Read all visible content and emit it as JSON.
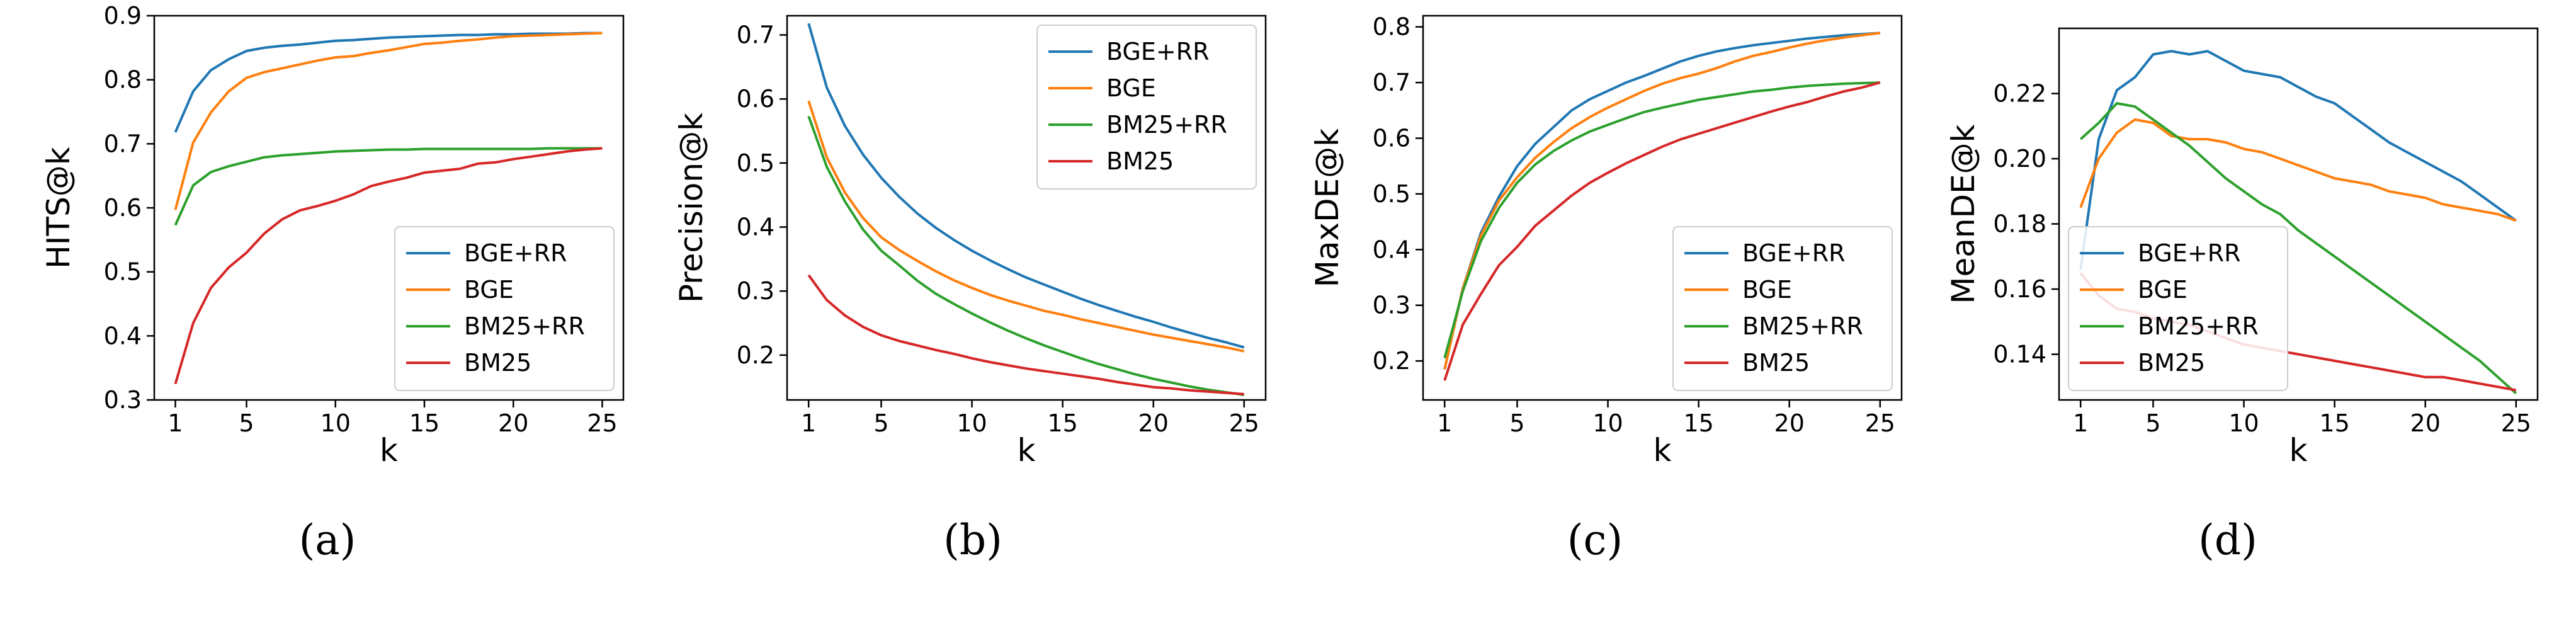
{
  "colors": {
    "BGE+RR": "#1f77b4",
    "BGE": "#ff7f0e",
    "BM25+RR": "#2ca02c",
    "BM25": "#d62728"
  },
  "chart_data": [
    {
      "type": "line",
      "caption": "(a)",
      "xlabel": "k",
      "ylabel": "HITS@k",
      "xlim": [
        1,
        25
      ],
      "ylim": [
        0.3,
        0.9
      ],
      "xticks": [
        1,
        5,
        10,
        15,
        20,
        25
      ],
      "yticks": [
        0.3,
        0.4,
        0.5,
        0.6,
        0.7,
        0.8,
        0.9
      ],
      "ytick_labels": [
        "0.3",
        "0.4",
        "0.5",
        "0.6",
        "0.7",
        "0.8",
        "0.9"
      ],
      "legend": "lower-right",
      "x": [
        1,
        2,
        3,
        4,
        5,
        6,
        7,
        8,
        9,
        10,
        11,
        12,
        13,
        14,
        15,
        16,
        17,
        18,
        19,
        20,
        21,
        22,
        23,
        24,
        25
      ],
      "series": [
        {
          "name": "BGE+RR",
          "values": [
            0.718,
            0.782,
            0.815,
            0.832,
            0.845,
            0.85,
            0.853,
            0.855,
            0.858,
            0.861,
            0.862,
            0.864,
            0.866,
            0.867,
            0.868,
            0.869,
            0.87,
            0.87,
            0.871,
            0.871,
            0.872,
            0.872,
            0.872,
            0.873,
            0.873
          ]
        },
        {
          "name": "BGE",
          "values": [
            0.597,
            0.702,
            0.749,
            0.782,
            0.803,
            0.812,
            0.818,
            0.824,
            0.83,
            0.835,
            0.837,
            0.842,
            0.846,
            0.851,
            0.856,
            0.858,
            0.861,
            0.863,
            0.866,
            0.868,
            0.869,
            0.87,
            0.871,
            0.872,
            0.873
          ]
        },
        {
          "name": "BM25+RR",
          "values": [
            0.573,
            0.635,
            0.656,
            0.665,
            0.672,
            0.679,
            0.682,
            0.684,
            0.686,
            0.688,
            0.689,
            0.69,
            0.691,
            0.691,
            0.692,
            0.692,
            0.692,
            0.692,
            0.692,
            0.692,
            0.692,
            0.693,
            0.693,
            0.693,
            0.693
          ]
        },
        {
          "name": "BM25",
          "values": [
            0.325,
            0.42,
            0.475,
            0.507,
            0.53,
            0.56,
            0.582,
            0.596,
            0.603,
            0.611,
            0.621,
            0.634,
            0.641,
            0.647,
            0.655,
            0.658,
            0.661,
            0.669,
            0.671,
            0.676,
            0.68,
            0.684,
            0.688,
            0.691,
            0.693
          ]
        }
      ]
    },
    {
      "type": "line",
      "caption": "(b)",
      "xlabel": "k",
      "ylabel": "Precision@k",
      "xlim": [
        1,
        25
      ],
      "ylim": [
        0.13,
        0.73
      ],
      "xticks": [
        1,
        5,
        10,
        15,
        20,
        25
      ],
      "yticks": [
        0.2,
        0.3,
        0.4,
        0.5,
        0.6,
        0.7
      ],
      "ytick_labels": [
        "0.2",
        "0.3",
        "0.4",
        "0.5",
        "0.6",
        "0.7"
      ],
      "legend": "top-right",
      "x": [
        1,
        2,
        3,
        4,
        5,
        6,
        7,
        8,
        9,
        10,
        11,
        12,
        13,
        14,
        15,
        16,
        17,
        18,
        19,
        20,
        21,
        22,
        23,
        24,
        25
      ],
      "series": [
        {
          "name": "BGE+RR",
          "values": [
            0.718,
            0.618,
            0.558,
            0.513,
            0.477,
            0.447,
            0.421,
            0.399,
            0.38,
            0.363,
            0.348,
            0.334,
            0.321,
            0.31,
            0.299,
            0.288,
            0.278,
            0.269,
            0.26,
            0.252,
            0.243,
            0.235,
            0.227,
            0.22,
            0.212
          ]
        },
        {
          "name": "BGE",
          "values": [
            0.597,
            0.509,
            0.454,
            0.414,
            0.384,
            0.364,
            0.347,
            0.331,
            0.317,
            0.305,
            0.294,
            0.285,
            0.277,
            0.269,
            0.263,
            0.256,
            0.25,
            0.244,
            0.238,
            0.232,
            0.227,
            0.222,
            0.217,
            0.212,
            0.206
          ]
        },
        {
          "name": "BM25+RR",
          "values": [
            0.573,
            0.494,
            0.44,
            0.396,
            0.363,
            0.34,
            0.316,
            0.296,
            0.28,
            0.265,
            0.251,
            0.238,
            0.226,
            0.215,
            0.205,
            0.195,
            0.186,
            0.178,
            0.17,
            0.163,
            0.157,
            0.151,
            0.146,
            0.142,
            0.138
          ]
        },
        {
          "name": "BM25",
          "values": [
            0.325,
            0.286,
            0.262,
            0.244,
            0.231,
            0.222,
            0.215,
            0.208,
            0.202,
            0.195,
            0.189,
            0.184,
            0.179,
            0.175,
            0.171,
            0.167,
            0.163,
            0.158,
            0.154,
            0.15,
            0.148,
            0.145,
            0.143,
            0.141,
            0.139
          ]
        }
      ]
    },
    {
      "type": "line",
      "caption": "(c)",
      "xlabel": "k",
      "ylabel": "MaxDE@k",
      "xlim": [
        1,
        25
      ],
      "ylim": [
        0.13,
        0.82
      ],
      "xticks": [
        1,
        5,
        10,
        15,
        20,
        25
      ],
      "yticks": [
        0.2,
        0.3,
        0.4,
        0.5,
        0.6,
        0.7,
        0.8
      ],
      "ytick_labels": [
        "0.2",
        "0.3",
        "0.4",
        "0.5",
        "0.6",
        "0.7",
        "0.8"
      ],
      "legend": "lower-right",
      "x": [
        1,
        2,
        3,
        4,
        5,
        6,
        7,
        8,
        9,
        10,
        11,
        12,
        13,
        14,
        15,
        16,
        17,
        18,
        19,
        20,
        21,
        22,
        23,
        24,
        25
      ],
      "series": [
        {
          "name": "BGE+RR",
          "values": [
            0.185,
            0.33,
            0.43,
            0.495,
            0.55,
            0.59,
            0.62,
            0.65,
            0.67,
            0.685,
            0.7,
            0.712,
            0.725,
            0.738,
            0.748,
            0.756,
            0.762,
            0.767,
            0.771,
            0.775,
            0.779,
            0.782,
            0.785,
            0.787,
            0.789
          ]
        },
        {
          "name": "BGE",
          "values": [
            0.185,
            0.33,
            0.425,
            0.488,
            0.53,
            0.565,
            0.593,
            0.618,
            0.638,
            0.655,
            0.67,
            0.685,
            0.698,
            0.708,
            0.716,
            0.726,
            0.738,
            0.748,
            0.755,
            0.763,
            0.77,
            0.776,
            0.781,
            0.785,
            0.789
          ]
        },
        {
          "name": "BM25+RR",
          "values": [
            0.205,
            0.325,
            0.415,
            0.475,
            0.52,
            0.553,
            0.577,
            0.596,
            0.612,
            0.624,
            0.636,
            0.647,
            0.655,
            0.662,
            0.669,
            0.674,
            0.679,
            0.684,
            0.687,
            0.691,
            0.694,
            0.696,
            0.698,
            0.699,
            0.7
          ]
        },
        {
          "name": "BM25",
          "values": [
            0.165,
            0.265,
            0.32,
            0.372,
            0.405,
            0.443,
            0.47,
            0.497,
            0.52,
            0.538,
            0.555,
            0.57,
            0.585,
            0.598,
            0.608,
            0.618,
            0.628,
            0.638,
            0.648,
            0.657,
            0.665,
            0.675,
            0.684,
            0.691,
            0.7
          ]
        }
      ]
    },
    {
      "type": "line",
      "caption": "(d)",
      "xlabel": "k",
      "ylabel": "MeanDE@k",
      "xlim": [
        1,
        25
      ],
      "ylim": [
        0.126,
        0.24
      ],
      "xticks": [
        1,
        5,
        10,
        15,
        20,
        25
      ],
      "yticks": [
        0.14,
        0.16,
        0.18,
        0.2,
        0.22
      ],
      "ytick_labels": [
        "0.14",
        "0.16",
        "0.18",
        "0.20",
        "0.22"
      ],
      "legend": "lower-left",
      "x": [
        1,
        2,
        3,
        4,
        5,
        6,
        7,
        8,
        9,
        10,
        11,
        12,
        13,
        14,
        15,
        16,
        17,
        18,
        19,
        20,
        21,
        22,
        23,
        24,
        25
      ],
      "series": [
        {
          "name": "BGE+RR",
          "values": [
            0.166,
            0.206,
            0.221,
            0.225,
            0.232,
            0.233,
            0.232,
            0.233,
            0.23,
            0.227,
            0.226,
            0.225,
            0.222,
            0.219,
            0.217,
            0.213,
            0.209,
            0.205,
            0.202,
            0.199,
            0.196,
            0.193,
            0.189,
            0.185,
            0.181
          ]
        },
        {
          "name": "BGE",
          "values": [
            0.185,
            0.2,
            0.208,
            0.212,
            0.211,
            0.207,
            0.206,
            0.206,
            0.205,
            0.203,
            0.202,
            0.2,
            0.198,
            0.196,
            0.194,
            0.193,
            0.192,
            0.19,
            0.189,
            0.188,
            0.186,
            0.185,
            0.184,
            0.183,
            0.181
          ]
        },
        {
          "name": "BM25+RR",
          "values": [
            0.206,
            0.211,
            0.217,
            0.216,
            0.212,
            0.208,
            0.204,
            0.199,
            0.194,
            0.19,
            0.186,
            0.183,
            0.178,
            0.174,
            0.17,
            0.166,
            0.162,
            0.158,
            0.154,
            0.15,
            0.146,
            0.142,
            0.138,
            0.133,
            0.128
          ]
        },
        {
          "name": "BM25",
          "values": [
            0.165,
            0.158,
            0.154,
            0.153,
            0.151,
            0.15,
            0.149,
            0.147,
            0.145,
            0.143,
            0.142,
            0.141,
            0.14,
            0.139,
            0.138,
            0.137,
            0.136,
            0.135,
            0.134,
            0.133,
            0.133,
            0.132,
            0.131,
            0.13,
            0.129
          ]
        }
      ]
    }
  ]
}
